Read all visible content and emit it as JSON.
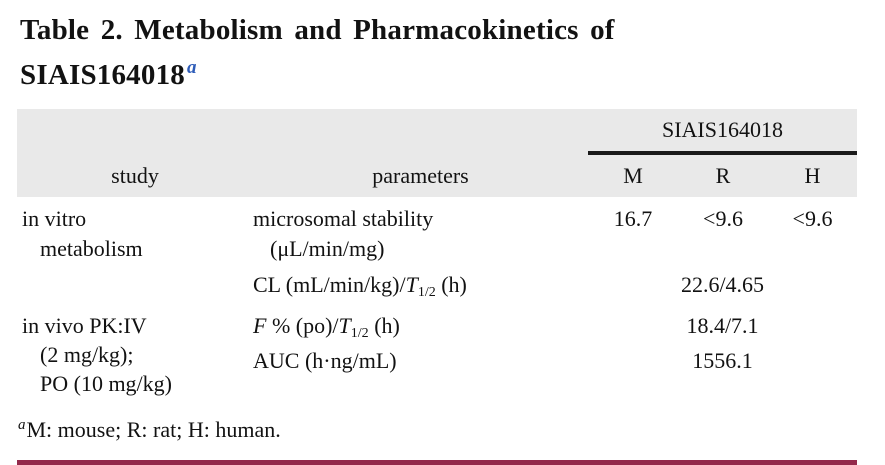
{
  "title": {
    "line1": "Table 2. Metabolism and Pharmacokinetics of",
    "line2": "SIAIS164018",
    "superscript": "a"
  },
  "table": {
    "spanner": "SIAIS164018",
    "columns": {
      "study": "study",
      "parameters": "parameters",
      "m": "M",
      "r": "R",
      "h": "H"
    },
    "rows": [
      {
        "study_lines": [
          "in vitro",
          "metabolism"
        ],
        "param_lines": [
          "microsomal stability",
          "(μL/min/mg)"
        ],
        "values": {
          "m": "16.7",
          "r": "<9.6",
          "h": "<9.6"
        }
      },
      {
        "param": {
          "prefix": "CL (mL/min/kg)/",
          "t": "T",
          "sub": "1/2",
          "suffix": " (h)"
        },
        "merged_value": "22.6/4.65"
      },
      {
        "study_lines": [
          "in vivo PK:IV",
          "(2 mg/kg);",
          "PO (10 mg/kg)"
        ],
        "param": {
          "f": "F",
          "mid": " % (po)/",
          "t": "T",
          "sub": "1/2",
          "suffix": " (h)"
        },
        "merged_value": "18.4/7.1"
      },
      {
        "param": {
          "text": "AUC (h·ng/mL)"
        },
        "merged_value": "1556.1"
      }
    ]
  },
  "footnote": {
    "superscript": "a",
    "text": "M: mouse; R: rat; H: human."
  },
  "colors": {
    "accent_rule": "#93294b",
    "header_bg": "#e9e9e9",
    "title_superscript_blue": "#2e5cb8",
    "text": "#121212",
    "spanner_rule": "#1a1a1a"
  }
}
